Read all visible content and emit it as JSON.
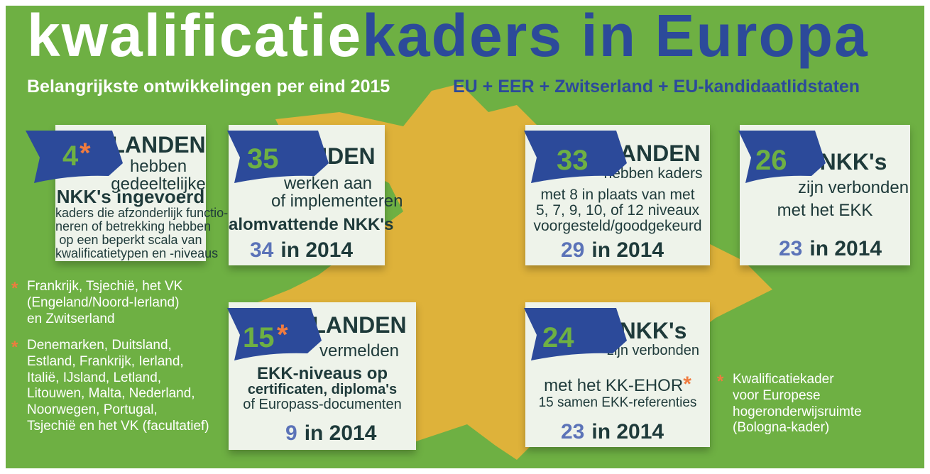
{
  "title_white": "kwalificatie",
  "title_blue": "kaders in Europa",
  "subtitle_left": "Belangrijkste ontwikkelingen per eind 2015",
  "subtitle_right": "EU + EER + Zwitserland + EU-kandidaatlidstaten",
  "cards": [
    {
      "number": "4",
      "asterisk": "*",
      "lines": [
        "LANDEN",
        "hebben",
        "gedeeltelijke",
        "NKK's ingevoerd",
        "kaders die afzonderlijk functio-",
        "neren of betrekking hebben",
        "op een beperkt scala van",
        "kwalificatietypen en -niveaus"
      ]
    },
    {
      "number": "35",
      "lines": [
        "LANDEN",
        "werken aan",
        "of implementeren",
        "alomvattende NKK's"
      ],
      "prev_count": "34",
      "prev_text": "in 2014"
    },
    {
      "number": "33",
      "lines": [
        "LANDEN",
        "hebben kaders",
        "met 8 in plaats van met",
        "5, 7, 9, 10, of 12 niveaux",
        "voorgesteld/goodgekeurd"
      ],
      "prev_count": "29",
      "prev_text": "in 2014"
    },
    {
      "number": "26",
      "lines": [
        "NKK's",
        "zijn verbonden",
        "met het EKK"
      ],
      "prev_count": "23",
      "prev_text": "in 2014"
    },
    {
      "number": "15",
      "asterisk": "*",
      "lines": [
        "LANDEN",
        "vermelden",
        "EKK-niveaus op",
        "certificaten, diploma's",
        "of Europass-documenten"
      ],
      "prev_count": "9",
      "prev_text": "in 2014"
    },
    {
      "number": "24",
      "lines": [
        "NKK's",
        "zijn verbonden",
        "met het KK-EHOR",
        "15 samen EKK-referenties"
      ],
      "asterisk": "*",
      "prev_count": "23",
      "prev_text": "in 2014"
    }
  ],
  "footnotes": [
    {
      "mark": "*",
      "lines": [
        "Frankrijk, Tsjechië, het VK",
        "(Engeland/Noord-Ierland)",
        "en Zwitserland"
      ]
    },
    {
      "mark": "*",
      "lines": [
        "Denemarken, Duitsland,",
        "Estland, Frankrijk, Ierland,",
        "Italië, IJsland, Letland,",
        "Litouwen, Malta, Nederland,",
        "Noorwegen, Portugal,",
        "Tsjechië en het VK (facultatief)"
      ]
    },
    {
      "mark": "*",
      "lines": [
        "Kwalificatiekader",
        "voor Europese",
        "hogeronderwijsruimte",
        "(Bologna-kader)"
      ]
    }
  ]
}
